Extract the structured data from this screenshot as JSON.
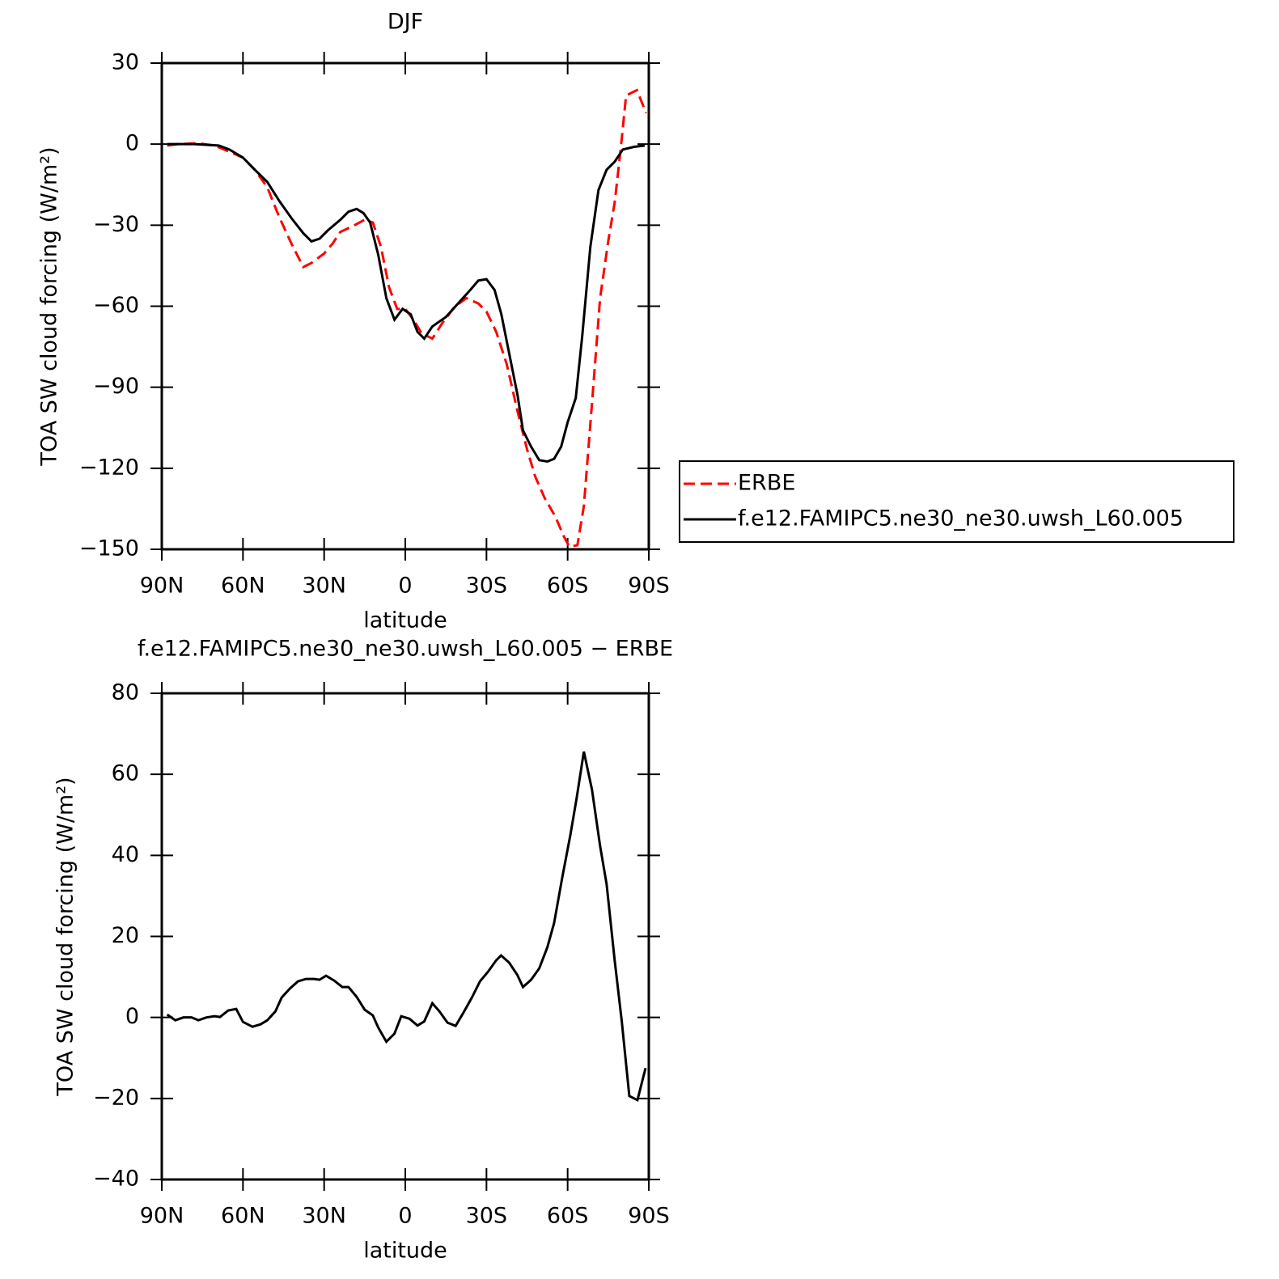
{
  "chart_data": [
    {
      "type": "line",
      "title": "DJF",
      "xlabel": "latitude",
      "ylabel": "TOA SW cloud forcing (W/m²)",
      "xlim": [
        90,
        -90
      ],
      "xticks": [
        {
          "value": 90,
          "label": "90N"
        },
        {
          "value": 60,
          "label": "60N"
        },
        {
          "value": 30,
          "label": "30N"
        },
        0,
        {
          "value": -30,
          "label": "30S"
        },
        {
          "value": -60,
          "label": "60S"
        },
        {
          "value": -90,
          "label": "90S"
        }
      ],
      "ylim": [
        -150,
        30
      ],
      "yticks": [
        {
          "value": -150,
          "label": "−150"
        },
        {
          "value": -120,
          "label": "−120"
        },
        {
          "value": -90,
          "label": "−90"
        },
        {
          "value": -60,
          "label": "−60"
        },
        {
          "value": -30,
          "label": "−30"
        },
        0,
        30
      ],
      "legend": "right",
      "series": [
        {
          "name": "ERBE",
          "color": "#ff0000",
          "line_style": "dashed",
          "x": [
            88,
            84,
            76.5,
            70.5,
            64.6,
            60,
            55.6,
            51,
            46.6,
            42,
            37.7,
            34.7,
            30,
            27,
            24,
            19.7,
            15,
            12,
            9,
            6,
            3,
            0,
            -3,
            -6,
            -10,
            -13.5,
            -18,
            -22.5,
            -27,
            -30,
            -33.6,
            -37.5,
            -41.5,
            -45,
            -48,
            -51.5,
            -55.5,
            -58.5,
            -60.6,
            -63.6,
            -66,
            -69,
            -72,
            -75,
            -77.4,
            -79.6,
            -81.6,
            -85.6,
            -89
          ],
          "values": [
            -0.5,
            0,
            0.3,
            -0.5,
            -3,
            -5,
            -9.5,
            -16,
            -27,
            -37,
            -45.5,
            -44,
            -40.5,
            -37,
            -32.5,
            -30.5,
            -28,
            -29,
            -38,
            -53,
            -61,
            -61,
            -65,
            -70,
            -72,
            -66.5,
            -60.5,
            -57,
            -59,
            -62,
            -69.5,
            -81.5,
            -99,
            -113,
            -123,
            -131,
            -138,
            -145,
            -149,
            -148.5,
            -134,
            -96,
            -57,
            -36,
            -21.5,
            -2,
            18,
            20,
            11.5
          ]
        },
        {
          "name": "f.e12.FAMIPC5.ne30_ne30.uwsh_L60.005",
          "color": "#000000",
          "line_style": "solid",
          "x": [
            88,
            78,
            69,
            65,
            60,
            55.6,
            51,
            46.6,
            42,
            37.7,
            34.7,
            31.7,
            28.7,
            24,
            21,
            18,
            15.5,
            13,
            10,
            7,
            4,
            1,
            -2,
            -4.5,
            -7,
            -10,
            -15,
            -19.5,
            -24,
            -27,
            -30,
            -33,
            -35.5,
            -38.5,
            -41.5,
            -43.5,
            -46.5,
            -49.5,
            -52.5,
            -55,
            -57.6,
            -60,
            -63,
            -65.4,
            -68.4,
            -71.4,
            -74.4,
            -77.4,
            -80.4,
            -84.6,
            -88.5
          ],
          "values": [
            0,
            0,
            -0.5,
            -2,
            -5,
            -9.5,
            -14,
            -21,
            -27.5,
            -33,
            -36,
            -35,
            -32,
            -28,
            -25,
            -24,
            -25.5,
            -29,
            -41,
            -57,
            -65,
            -61,
            -63,
            -69.5,
            -72,
            -67.5,
            -64,
            -59,
            -54,
            -50.5,
            -50,
            -54,
            -63,
            -78,
            -93,
            -106,
            -112,
            -117,
            -117.5,
            -116.5,
            -112,
            -103,
            -94,
            -71,
            -38,
            -17,
            -9.5,
            -6.5,
            -2,
            -1,
            -0.5
          ]
        }
      ]
    },
    {
      "type": "line",
      "title": "f.e12.FAMIPC5.ne30_ne30.uwsh_L60.005 − ERBE",
      "xlabel": "latitude",
      "ylabel": "TOA SW cloud forcing (W/m²)",
      "xlim": [
        90,
        -90
      ],
      "xticks": [
        {
          "value": 90,
          "label": "90N"
        },
        {
          "value": 60,
          "label": "60N"
        },
        {
          "value": 30,
          "label": "30N"
        },
        0,
        {
          "value": -30,
          "label": "30S"
        },
        {
          "value": -60,
          "label": "60S"
        },
        {
          "value": -90,
          "label": "90S"
        }
      ],
      "ylim": [
        -40,
        80
      ],
      "yticks": [
        {
          "value": -40,
          "label": "−40"
        },
        {
          "value": -20,
          "label": "−20"
        },
        0,
        20,
        40,
        60,
        80
      ],
      "color": "#000000",
      "x": [
        88,
        85,
        82,
        79,
        76.5,
        73.5,
        70.5,
        68.5,
        65.5,
        62.5,
        60,
        56.5,
        53.5,
        51,
        48,
        45.7,
        42.7,
        39.7,
        36.7,
        33.7,
        31.7,
        29.3,
        26.3,
        23.3,
        21,
        18,
        15,
        12,
        10,
        7,
        4,
        1.5,
        -1.5,
        -4.5,
        -7,
        -10,
        -12.6,
        -15.6,
        -18.6,
        -21.6,
        -24.6,
        -27.6,
        -30.6,
        -33.6,
        -35.4,
        -38.4,
        -41.4,
        -43.5,
        -46.5,
        -49.5,
        -52.5,
        -55,
        -58,
        -61,
        -63.3,
        -66,
        -69,
        -72,
        -74.4,
        -77.4,
        -80,
        -82.8,
        -85.8,
        -88.8
      ],
      "values": [
        0.7,
        -0.7,
        0,
        0,
        -0.7,
        0,
        0.3,
        0.1,
        1.7,
        2.1,
        -1.1,
        -2.3,
        -1.7,
        -0.7,
        1.5,
        4.9,
        7.1,
        8.9,
        9.5,
        9.5,
        9.3,
        10.3,
        9.1,
        7.5,
        7.5,
        5.1,
        1.9,
        0.5,
        -2.5,
        -6,
        -4,
        0.3,
        -0.3,
        -2,
        -1,
        3.5,
        1.5,
        -1.3,
        -2.1,
        1.3,
        4.9,
        8.9,
        11.3,
        14.1,
        15.3,
        13.5,
        10.5,
        7.5,
        9.3,
        12.1,
        17.3,
        23.3,
        34.5,
        45,
        54,
        65.6,
        56.2,
        42.3,
        32.9,
        14,
        -0.9,
        -19.4,
        -20.4,
        -12.5
      ]
    }
  ]
}
